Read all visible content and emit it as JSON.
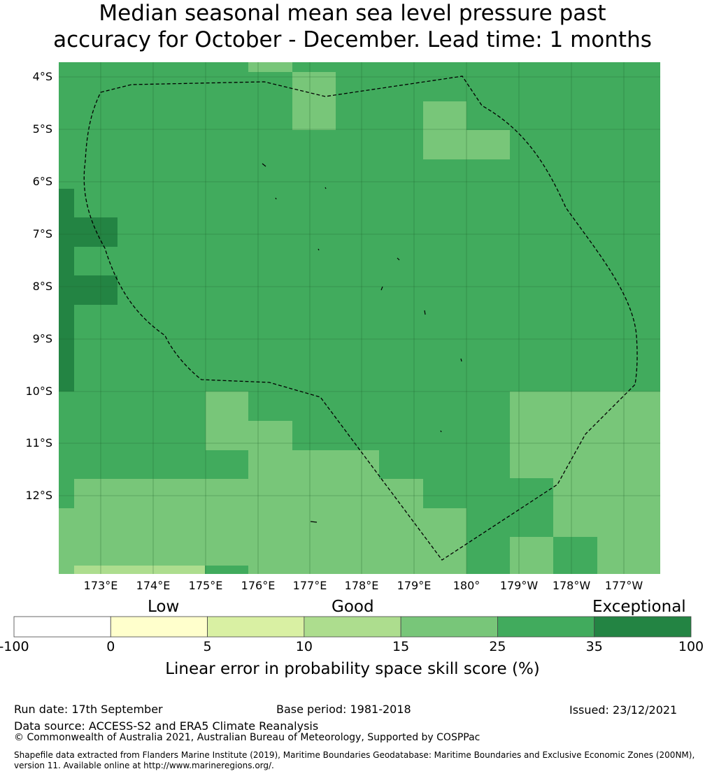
{
  "title": {
    "line1": "Median seasonal mean sea level pressure past",
    "line2": "accuracy for October - December. Lead time: 1 months"
  },
  "map": {
    "lat_labels": [
      "4°S",
      "5°S",
      "6°S",
      "7°S",
      "8°S",
      "9°S",
      "10°S",
      "11°S",
      "12°S"
    ],
    "lon_labels": [
      "173°E",
      "174°E",
      "175°E",
      "176°E",
      "177°E",
      "178°E",
      "179°E",
      "180°",
      "179°W",
      "178°W",
      "177°W"
    ],
    "boundary_style": "dashed black",
    "land_color": "#000000"
  },
  "colorbar": {
    "categories": [
      "Low",
      "Good",
      "Exceptional"
    ],
    "ticks": [
      "-100",
      "0",
      "5",
      "10",
      "15",
      "25",
      "35",
      "100"
    ],
    "colors": [
      "#ffffff",
      "#ffffcc",
      "#d9f0a3",
      "#addd8e",
      "#78c679",
      "#41ab5d",
      "#238443"
    ],
    "label": "Linear error in probability space skill score (%)"
  },
  "footer": {
    "run_date": "Run date: 17th September",
    "base_period": "Base period: 1981-2018",
    "issued": "Issued: 23/12/2021",
    "data_source": "Data source: ACCESS-S2 and ERA5 Climate Reanalysis",
    "copyright": "© Commonwealth of Australia 2021, Australian Bureau of Meteorology, Supported by COSPPac",
    "shapefile_line1": "Shapefile data extracted from Flanders Marine Institute (2019), Maritime Boundaries Geodatabase: Maritime Boundaries and Exclusive Economic Zones (200NM),",
    "shapefile_line2": "version 11. Available online at http://www.marineregions.org/."
  }
}
